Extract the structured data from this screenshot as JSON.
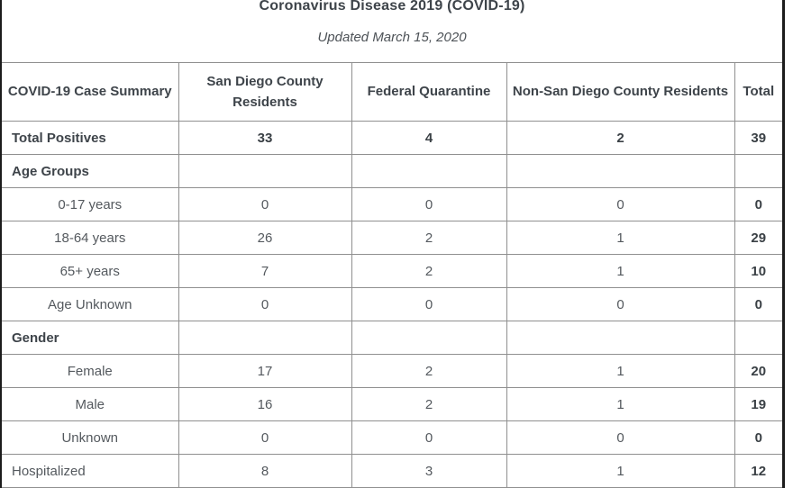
{
  "chart_data": {
    "type": "table",
    "title": "Coronavirus Disease 2019 (COVID-19)",
    "subtitle": "Updated March 15, 2020",
    "columns": [
      "COVID-19 Case Summary",
      "San Diego County Residents",
      "Federal Quarantine",
      "Non-San Diego County Residents",
      "Total"
    ],
    "rows": [
      {
        "label": "Total Positives",
        "style": "section-bold",
        "values": [
          "33",
          "4",
          "2"
        ],
        "total": "39",
        "values_bold": true
      },
      {
        "label": "Age Groups",
        "style": "section-bold",
        "values": [
          "",
          "",
          ""
        ],
        "total": "",
        "values_bold": false
      },
      {
        "label": "0-17 years",
        "style": "sub",
        "values": [
          "0",
          "0",
          "0"
        ],
        "total": "0",
        "values_bold": false
      },
      {
        "label": "18-64 years",
        "style": "sub",
        "values": [
          "26",
          "2",
          "1"
        ],
        "total": "29",
        "values_bold": false
      },
      {
        "label": "65+ years",
        "style": "sub",
        "values": [
          "7",
          "2",
          "1"
        ],
        "total": "10",
        "values_bold": false
      },
      {
        "label": "Age Unknown",
        "style": "sub",
        "values": [
          "0",
          "0",
          "0"
        ],
        "total": "0",
        "values_bold": false
      },
      {
        "label": "Gender",
        "style": "section-bold",
        "values": [
          "",
          "",
          ""
        ],
        "total": "",
        "values_bold": false
      },
      {
        "label": "Female",
        "style": "sub",
        "values": [
          "17",
          "2",
          "1"
        ],
        "total": "20",
        "values_bold": false
      },
      {
        "label": "Male",
        "style": "sub",
        "values": [
          "16",
          "2",
          "1"
        ],
        "total": "19",
        "values_bold": false
      },
      {
        "label": "Unknown",
        "style": "sub",
        "values": [
          "0",
          "0",
          "0"
        ],
        "total": "0",
        "values_bold": false
      },
      {
        "label": "Hospitalized",
        "style": "section-regular",
        "values": [
          "8",
          "3",
          "1"
        ],
        "total": "12",
        "values_bold": false
      }
    ]
  },
  "colors": {
    "outer_border": "#1c1c1c",
    "grid_line": "#8f8f8f",
    "text_dark": "#3e444a",
    "text_regular": "#54595e"
  }
}
